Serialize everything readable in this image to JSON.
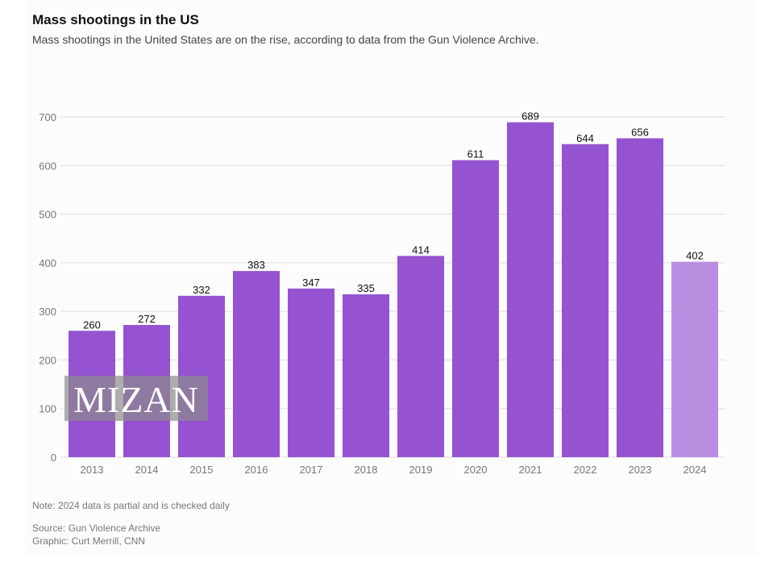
{
  "chart_data": {
    "type": "bar",
    "title": "Mass shootings in the US",
    "subtitle": "Mass shootings in the United States are on the rise, according to data from the Gun Violence Archive.",
    "categories": [
      "2013",
      "2014",
      "2015",
      "2016",
      "2017",
      "2018",
      "2019",
      "2020",
      "2021",
      "2022",
      "2023",
      "2024"
    ],
    "values": [
      260,
      272,
      332,
      383,
      347,
      335,
      414,
      611,
      689,
      644,
      656,
      402
    ],
    "partial": [
      false,
      false,
      false,
      false,
      false,
      false,
      false,
      false,
      false,
      false,
      false,
      true
    ],
    "ylim": [
      0,
      700
    ],
    "yticks": [
      0,
      100,
      200,
      300,
      400,
      500,
      600,
      700
    ],
    "grid": true,
    "xlabel": "",
    "ylabel": "",
    "colors": {
      "bar": "#9553d1",
      "partial_bar": "#b98ee0",
      "grid": "#dddddd"
    }
  },
  "footer": {
    "note": "Note: 2024 data is partial and is checked daily",
    "source": "Source: Gun Violence Archive",
    "graphic": "Graphic: Curt Merrill, CNN"
  },
  "watermark": "MIZAN"
}
